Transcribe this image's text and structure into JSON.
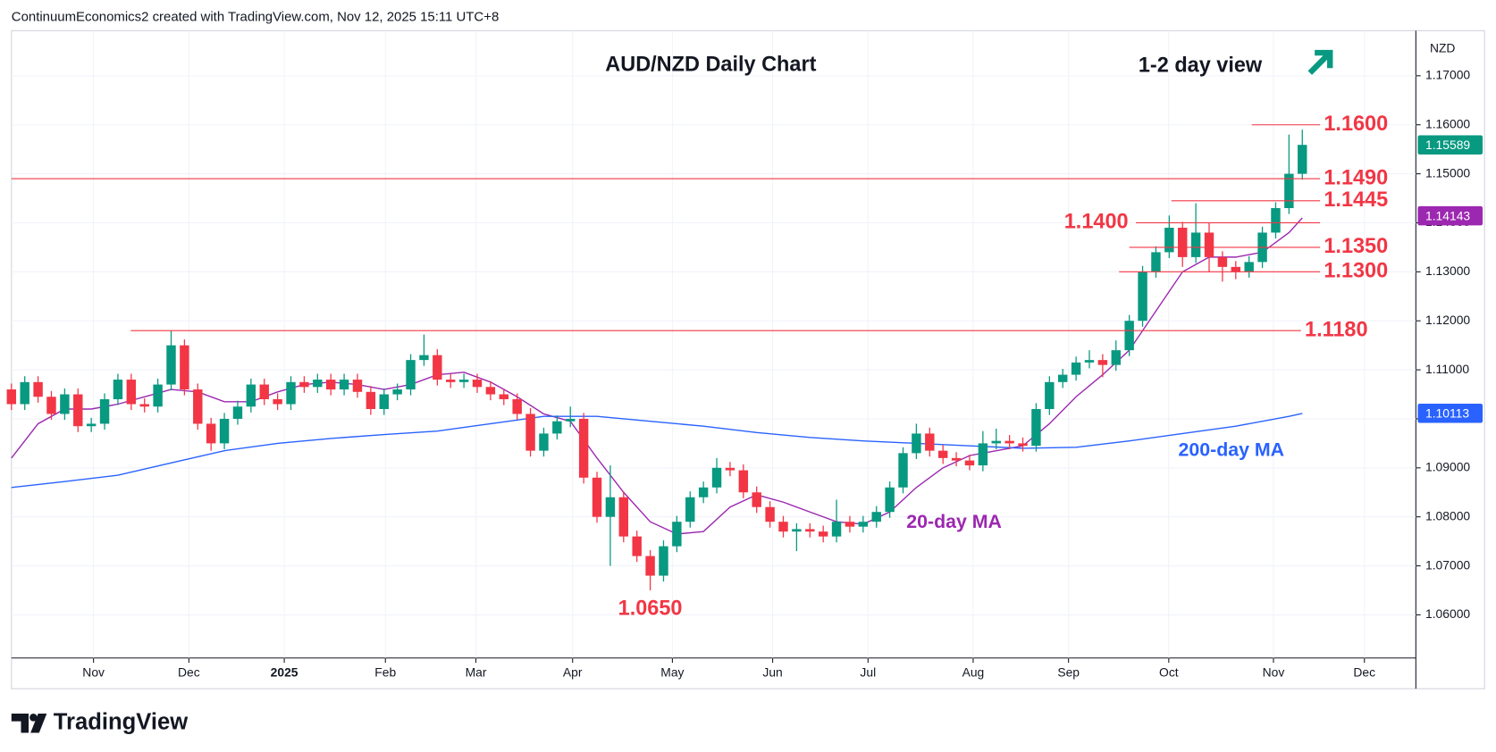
{
  "header": "ContinuumEconomics2 created with TradingView.com, Nov 12, 2025 15:11 UTC+8",
  "footer": "TradingView",
  "chart_data": {
    "type": "candlestick",
    "title": "AUD/NZD Daily Chart",
    "subtitle": "1-2 day view",
    "currency": "NZD",
    "up_color": "#089981",
    "down_color": "#f23645",
    "x": [
      0,
      3,
      6,
      9,
      12,
      15,
      18,
      21,
      24,
      27,
      30,
      33,
      36,
      39,
      42,
      45,
      48,
      51,
      54,
      57,
      60,
      63,
      66,
      69,
      72,
      75,
      78,
      81,
      84,
      87,
      90,
      93,
      96,
      99,
      102,
      105,
      108,
      111,
      114,
      117,
      120,
      123,
      126,
      129,
      132,
      135,
      138,
      141,
      144,
      147,
      150,
      153,
      156,
      159,
      162,
      165,
      168,
      171,
      174,
      177,
      180,
      183,
      186,
      189,
      192,
      195,
      198,
      201,
      204,
      207,
      210,
      213,
      216,
      219,
      222,
      225,
      228,
      231,
      234,
      237,
      240,
      243,
      246,
      249,
      252,
      255,
      258,
      261,
      264,
      267,
      270,
      273,
      276,
      279,
      282,
      285,
      288,
      291
    ],
    "open": [
      1.106,
      1.103,
      1.1075,
      1.1045,
      1.101,
      1.105,
      1.0985,
      1.099,
      1.104,
      1.108,
      1.103,
      1.1025,
      1.107,
      1.115,
      1.106,
      1.099,
      1.095,
      1.1,
      1.1025,
      1.107,
      1.104,
      1.103,
      1.1075,
      1.1065,
      1.108,
      1.106,
      1.108,
      1.1055,
      1.102,
      1.105,
      1.106,
      1.112,
      1.113,
      1.108,
      1.1075,
      1.108,
      1.1065,
      1.105,
      1.104,
      1.101,
      1.0935,
      1.097,
      1.0995,
      1.1,
      1.088,
      1.08,
      1.084,
      1.076,
      1.072,
      1.068,
      1.074,
      1.079,
      1.084,
      1.086,
      1.09,
      1.0895,
      1.085,
      1.082,
      1.079,
      1.077,
      1.0775,
      1.077,
      1.076,
      1.079,
      1.078,
      1.079,
      1.081,
      1.086,
      1.093,
      1.097,
      1.0935,
      1.092,
      1.0915,
      1.0905,
      1.095,
      1.0955,
      1.095,
      1.0945,
      1.102,
      1.1075,
      1.109,
      1.1115,
      1.112,
      1.111,
      1.114,
      1.12,
      1.13,
      1.134,
      1.139,
      1.133,
      1.138,
      1.133,
      1.131,
      1.13,
      1.132,
      1.138,
      1.143,
      1.15
    ],
    "high": [
      1.1072,
      1.1087,
      1.1087,
      1.1057,
      1.1062,
      1.1062,
      1.1002,
      1.1052,
      1.1092,
      1.1092,
      1.1042,
      1.1082,
      1.118,
      1.1162,
      1.1072,
      1.1002,
      1.1012,
      1.1037,
      1.1082,
      1.1082,
      1.1052,
      1.1087,
      1.1087,
      1.1092,
      1.1092,
      1.1092,
      1.1092,
      1.1067,
      1.1062,
      1.1072,
      1.1132,
      1.1172,
      1.1142,
      1.1092,
      1.1092,
      1.1092,
      1.1077,
      1.1062,
      1.1052,
      1.1022,
      1.0982,
      1.1007,
      1.1025,
      1.1012,
      1.0892,
      1.0905,
      1.0852,
      1.0772,
      1.0732,
      1.0752,
      1.0802,
      1.0852,
      1.0872,
      1.092,
      1.0912,
      1.0907,
      1.0862,
      1.0832,
      1.0802,
      1.0787,
      1.0787,
      1.0782,
      1.0835,
      1.0802,
      1.0802,
      1.0822,
      1.0872,
      1.0942,
      1.099,
      1.0982,
      1.0947,
      1.0932,
      1.0927,
      1.0975,
      1.098,
      1.0967,
      1.0962,
      1.1032,
      1.1087,
      1.1102,
      1.1127,
      1.114,
      1.1132,
      1.116,
      1.1212,
      1.1312,
      1.1352,
      1.1415,
      1.1402,
      1.144,
      1.14,
      1.1342,
      1.1322,
      1.1332,
      1.1392,
      1.1442,
      1.158,
      1.159
    ],
    "low": [
      1.1018,
      1.1018,
      1.1033,
      1.0998,
      1.0998,
      1.0973,
      1.0973,
      1.0978,
      1.1028,
      1.1018,
      1.1013,
      1.1013,
      1.1058,
      1.1048,
      1.0978,
      1.0935,
      1.0938,
      1.0988,
      1.1013,
      1.1028,
      1.1018,
      1.1018,
      1.1053,
      1.1053,
      1.1048,
      1.1048,
      1.1043,
      1.1008,
      1.1008,
      1.1038,
      1.1048,
      1.1108,
      1.1068,
      1.1063,
      1.1063,
      1.1053,
      1.1038,
      1.1028,
      1.0998,
      1.0923,
      1.0923,
      1.0958,
      1.0983,
      1.0868,
      1.0788,
      1.07,
      1.0748,
      1.0708,
      1.065,
      1.0668,
      1.0728,
      1.0778,
      1.0828,
      1.0848,
      1.0883,
      1.0838,
      1.0808,
      1.0778,
      1.0758,
      1.073,
      1.0758,
      1.0748,
      1.0748,
      1.0768,
      1.0768,
      1.0778,
      1.0798,
      1.0848,
      1.0918,
      1.0923,
      1.0908,
      1.0903,
      1.0895,
      1.0893,
      1.0938,
      1.0938,
      1.0933,
      1.0933,
      1.1008,
      1.1063,
      1.1078,
      1.1103,
      1.1085,
      1.1098,
      1.1128,
      1.1188,
      1.1288,
      1.1328,
      1.131,
      1.1318,
      1.13,
      1.128,
      1.1285,
      1.1288,
      1.1308,
      1.1368,
      1.1418,
      1.1488
    ],
    "close": [
      1.103,
      1.1075,
      1.1045,
      1.101,
      1.105,
      1.0985,
      1.099,
      1.104,
      1.108,
      1.103,
      1.1025,
      1.107,
      1.115,
      1.106,
      1.099,
      1.095,
      1.1,
      1.1025,
      1.107,
      1.104,
      1.103,
      1.1075,
      1.1065,
      1.108,
      1.106,
      1.108,
      1.1055,
      1.102,
      1.105,
      1.106,
      1.112,
      1.113,
      1.108,
      1.1075,
      1.108,
      1.1065,
      1.105,
      1.104,
      1.101,
      1.0935,
      1.097,
      1.0995,
      1.1,
      1.088,
      1.08,
      1.084,
      1.076,
      1.072,
      1.068,
      1.074,
      1.079,
      1.084,
      1.086,
      1.09,
      1.0895,
      1.085,
      1.082,
      1.079,
      1.077,
      1.0775,
      1.077,
      1.076,
      1.079,
      1.078,
      1.079,
      1.081,
      1.086,
      1.093,
      1.097,
      1.0935,
      1.092,
      1.0915,
      1.0905,
      1.095,
      1.0955,
      1.095,
      1.0945,
      1.102,
      1.1075,
      1.109,
      1.1115,
      1.112,
      1.111,
      1.114,
      1.12,
      1.13,
      1.134,
      1.139,
      1.133,
      1.138,
      1.133,
      1.131,
      1.13,
      1.132,
      1.138,
      1.143,
      1.15,
      1.1559
    ],
    "lines": [
      {
        "name": "20-day MA",
        "color": "#9c27b0",
        "x": [
          0,
          6,
          12,
          18,
          24,
          30,
          36,
          42,
          48,
          54,
          60,
          66,
          72,
          78,
          84,
          90,
          96,
          102,
          108,
          114,
          120,
          126,
          132,
          138,
          144,
          150,
          156,
          162,
          168,
          174,
          180,
          186,
          192,
          198,
          204,
          210,
          216,
          222,
          228,
          234,
          240,
          246,
          252,
          258,
          264,
          270,
          276,
          282,
          288,
          291
        ],
        "values": [
          1.092,
          1.099,
          1.102,
          1.102,
          1.103,
          1.1045,
          1.106,
          1.1055,
          1.1035,
          1.1035,
          1.1055,
          1.107,
          1.1075,
          1.107,
          1.106,
          1.107,
          1.109,
          1.1095,
          1.1075,
          1.1045,
          1.101,
          1.0995,
          1.092,
          1.085,
          1.079,
          1.0765,
          1.077,
          1.082,
          1.0845,
          1.083,
          1.081,
          1.079,
          1.0785,
          1.081,
          1.086,
          1.09,
          1.0925,
          1.0935,
          1.0945,
          1.099,
          1.1045,
          1.109,
          1.114,
          1.122,
          1.13,
          1.133,
          1.133,
          1.134,
          1.138,
          1.141
        ]
      },
      {
        "name": "200-day MA",
        "color": "#2962ff",
        "x": [
          0,
          12,
          24,
          36,
          48,
          60,
          72,
          84,
          96,
          108,
          120,
          132,
          144,
          156,
          168,
          180,
          192,
          204,
          216,
          228,
          240,
          252,
          264,
          276,
          288,
          291
        ],
        "values": [
          1.086,
          1.0872,
          1.0885,
          1.091,
          1.0935,
          1.095,
          1.096,
          1.0968,
          1.0975,
          1.099,
          1.1005,
          1.1005,
          1.0995,
          1.0985,
          1.0972,
          1.0962,
          1.0955,
          1.095,
          1.0945,
          1.094,
          1.0942,
          1.0955,
          1.097,
          1.0985,
          1.1005,
          1.1011
        ]
      }
    ],
    "levels": [
      {
        "value": 1.16,
        "label": "1.1600",
        "x": [
          279.6,
          295
        ]
      },
      {
        "value": 1.149,
        "label": "1.1490",
        "x": [
          0,
          295
        ]
      },
      {
        "value": 1.1445,
        "label": "1.1445",
        "x": [
          261.5,
          295
        ]
      },
      {
        "value": 1.14,
        "label": "1.1400",
        "x": [
          253.5,
          295
        ]
      },
      {
        "value": 1.135,
        "label": "1.1350",
        "x": [
          252,
          295
        ]
      },
      {
        "value": 1.13,
        "label": "1.1300",
        "x": [
          249.7,
          295
        ]
      },
      {
        "value": 1.118,
        "label": "1.1180",
        "x": [
          26.9,
          290.7
        ]
      }
    ],
    "annotations": [
      {
        "value": 1.065,
        "label": "1.0650",
        "x": 144
      }
    ],
    "badges": [
      {
        "value": 1.15589,
        "label": "1.15589",
        "color": "#089981"
      },
      {
        "value": 1.14143,
        "label": "1.14143",
        "color": "#9c27b0"
      },
      {
        "value": 1.10113,
        "label": "1.10113",
        "color": "#2962ff"
      }
    ],
    "xlim": [
      0,
      316.6
    ],
    "xticks": [
      {
        "value": 18.5,
        "label": "Nov"
      },
      {
        "value": 40,
        "label": "Dec"
      },
      {
        "value": 61.5,
        "label": "2025"
      },
      {
        "value": 84.3,
        "label": "Feb"
      },
      {
        "value": 104.7,
        "label": "Mar"
      },
      {
        "value": 126.5,
        "label": "Apr"
      },
      {
        "value": 149,
        "label": "May"
      },
      {
        "value": 171.6,
        "label": "Jun"
      },
      {
        "value": 193.1,
        "label": "Jul"
      },
      {
        "value": 216.8,
        "label": "Aug"
      },
      {
        "value": 238.3,
        "label": "Sep"
      },
      {
        "value": 260.9,
        "label": "Oct"
      },
      {
        "value": 284.5,
        "label": "Nov"
      },
      {
        "value": 305,
        "label": "Dec"
      }
    ],
    "ylim": [
      1.0512,
      1.1792
    ],
    "yticks": [
      {
        "value": 1.06,
        "label": "1.06000"
      },
      {
        "value": 1.07,
        "label": "1.07000"
      },
      {
        "value": 1.08,
        "label": "1.08000"
      },
      {
        "value": 1.09,
        "label": "1.09000"
      },
      {
        "value": 1.1,
        "label": "1.10000"
      },
      {
        "value": 1.11,
        "label": "1.11000"
      },
      {
        "value": 1.12,
        "label": "1.12000"
      },
      {
        "value": 1.13,
        "label": "1.13000"
      },
      {
        "value": 1.14,
        "label": "1.14000"
      },
      {
        "value": 1.15,
        "label": "1.15000"
      },
      {
        "value": 1.16,
        "label": "1.16000"
      },
      {
        "value": 1.17,
        "label": "1.17000"
      }
    ],
    "grid": true
  }
}
